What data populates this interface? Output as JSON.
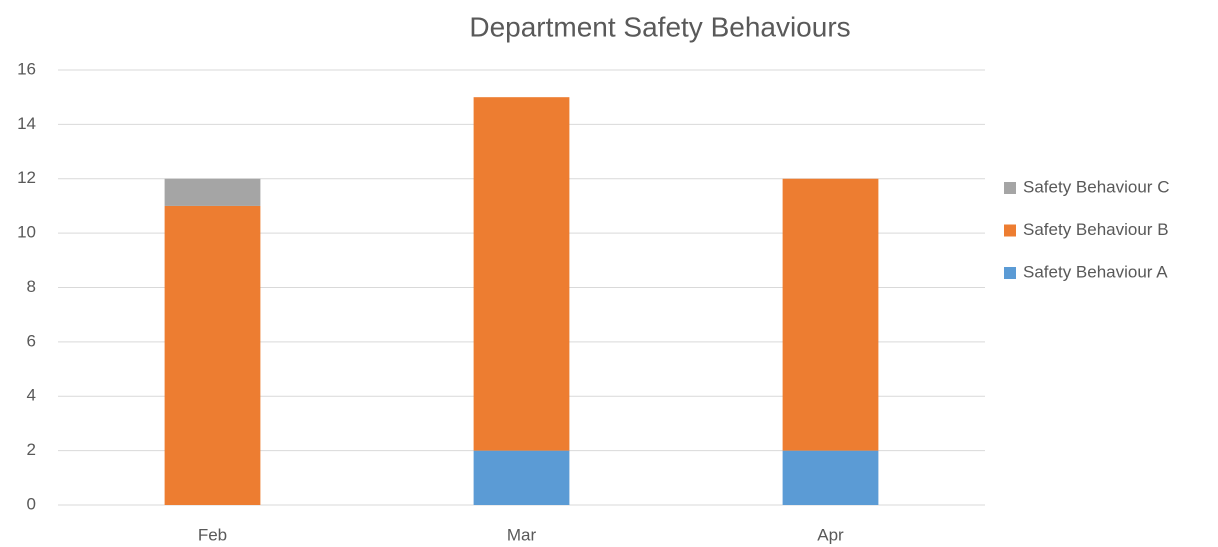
{
  "chart_data": {
    "type": "stacked_bar",
    "title": "Department Safety Behaviours",
    "categories": [
      "Feb",
      "Mar",
      "Apr"
    ],
    "series": [
      {
        "name": "Safety Behaviour A",
        "color": "#5b9bd5",
        "values": [
          0,
          2,
          2
        ]
      },
      {
        "name": "Safety Behaviour B",
        "color": "#ed7d31",
        "values": [
          11,
          13,
          10
        ]
      },
      {
        "name": "Safety Behaviour C",
        "color": "#a5a5a5",
        "values": [
          1,
          0,
          0
        ]
      }
    ],
    "ylim": [
      0,
      16
    ],
    "yticks": [
      0,
      2,
      4,
      6,
      8,
      10,
      12,
      14,
      16
    ],
    "grid": true,
    "legend": "right"
  }
}
